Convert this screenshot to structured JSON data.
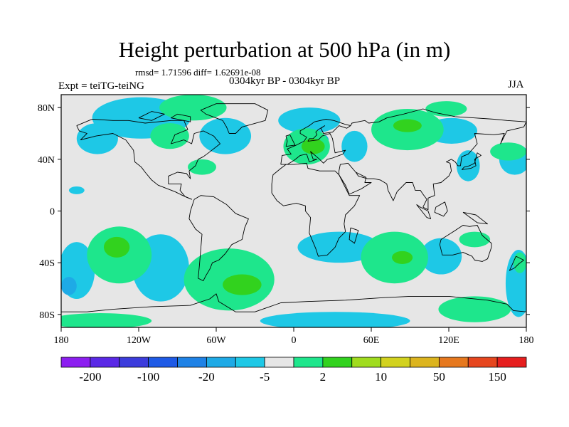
{
  "header": {
    "title": "Height perturbation at 500 hPa (in m)",
    "stats": "rmsd= 1.71596 diff= 1.62691e-08",
    "period": "0304kyr BP - 0304kyr BP",
    "expt": "Expt = teiTG-teiNG",
    "season": "JJA"
  },
  "map": {
    "background_color": "#e6e6e6",
    "lon_range": [
      -180,
      180
    ],
    "lat_range": [
      -90,
      90
    ],
    "lat_ticks": [
      {
        "value": 80,
        "label": "80N"
      },
      {
        "value": 40,
        "label": "40N"
      },
      {
        "value": 0,
        "label": "0"
      },
      {
        "value": -40,
        "label": "40S"
      },
      {
        "value": -80,
        "label": "80S"
      }
    ],
    "lon_ticks": [
      {
        "value": -180,
        "label": "180"
      },
      {
        "value": -120,
        "label": "120W"
      },
      {
        "value": -60,
        "label": "60W"
      },
      {
        "value": 0,
        "label": "0"
      },
      {
        "value": 60,
        "label": "60E"
      },
      {
        "value": 120,
        "label": "120E"
      },
      {
        "value": 180,
        "label": "180"
      }
    ]
  },
  "colorbar": {
    "colors": [
      "#8c1ef0",
      "#5a28e6",
      "#3c3cdc",
      "#1e5ae6",
      "#1e82e6",
      "#1eaae6",
      "#1ec8e6",
      "#e6e6e6",
      "#1ee68c",
      "#32d21e",
      "#a0dc1e",
      "#d2d21e",
      "#dcb41e",
      "#e6781e",
      "#e6461e",
      "#e61e1e"
    ],
    "labels": [
      {
        "after_box": 1,
        "text": "-200"
      },
      {
        "after_box": 3,
        "text": "-100"
      },
      {
        "after_box": 5,
        "text": "-20"
      },
      {
        "after_box": 7,
        "text": "-5"
      },
      {
        "after_box": 9,
        "text": "2"
      },
      {
        "after_box": 11,
        "text": "10"
      },
      {
        "after_box": 13,
        "text": "50"
      },
      {
        "after_box": 15,
        "text": "150"
      }
    ]
  },
  "fields": {
    "cyan_color": "#1ec8e6",
    "blue_color": "#1eaae6",
    "green_color": "#1ee68c",
    "lime_color": "#32d21e",
    "cyan_regions": [
      {
        "lon": -118,
        "lat": 72,
        "w": 38,
        "h": 16
      },
      {
        "lon": -152,
        "lat": 56,
        "w": 16,
        "h": 12
      },
      {
        "lon": -53,
        "lat": 58,
        "w": 20,
        "h": 14
      },
      {
        "lon": -168,
        "lat": 16,
        "w": 6,
        "h": 3
      },
      {
        "lon": 12,
        "lat": 70,
        "w": 24,
        "h": 10
      },
      {
        "lon": 47,
        "lat": 50,
        "w": 10,
        "h": 12
      },
      {
        "lon": 122,
        "lat": 62,
        "w": 20,
        "h": 10
      },
      {
        "lon": 135,
        "lat": 35,
        "w": 9,
        "h": 12
      },
      {
        "lon": 171,
        "lat": 40,
        "w": 12,
        "h": 12
      },
      {
        "lon": -168,
        "lat": -46,
        "w": 14,
        "h": 22
      },
      {
        "lon": -103,
        "lat": -44,
        "w": 22,
        "h": 26
      },
      {
        "lon": 35,
        "lat": -28,
        "w": 32,
        "h": 12
      },
      {
        "lon": 114,
        "lat": -35,
        "w": 16,
        "h": 14
      },
      {
        "lon": 174,
        "lat": -56,
        "w": 10,
        "h": 26
      },
      {
        "lon": 32,
        "lat": -85,
        "w": 58,
        "h": 7
      }
    ],
    "blue_regions": [
      {
        "lon": -174,
        "lat": -58,
        "w": 6,
        "h": 7
      },
      {
        "lon": 20,
        "lat": 55,
        "w": 7,
        "h": 5
      }
    ],
    "green_regions": [
      {
        "lon": -78,
        "lat": 80,
        "w": 26,
        "h": 10
      },
      {
        "lon": -96,
        "lat": 58,
        "w": 15,
        "h": 10
      },
      {
        "lon": -71,
        "lat": 34,
        "w": 11,
        "h": 6
      },
      {
        "lon": 10,
        "lat": 50,
        "w": 18,
        "h": 14
      },
      {
        "lon": 88,
        "lat": 63,
        "w": 28,
        "h": 16
      },
      {
        "lon": 118,
        "lat": 79,
        "w": 16,
        "h": 6
      },
      {
        "lon": 166,
        "lat": 46,
        "w": 14,
        "h": 7
      },
      {
        "lon": -135,
        "lat": -34,
        "w": 25,
        "h": 22
      },
      {
        "lon": -50,
        "lat": -53,
        "w": 35,
        "h": 24
      },
      {
        "lon": 78,
        "lat": -36,
        "w": 26,
        "h": 20
      },
      {
        "lon": 140,
        "lat": -22,
        "w": 12,
        "h": 6
      },
      {
        "lon": 140,
        "lat": -76,
        "w": 28,
        "h": 10
      },
      {
        "lon": -150,
        "lat": -85,
        "w": 40,
        "h": 6
      },
      {
        "lon": 175,
        "lat": -40,
        "w": 5,
        "h": 8
      }
    ],
    "lime_regions": [
      {
        "lon": 15,
        "lat": 50,
        "w": 9,
        "h": 6
      },
      {
        "lon": 88,
        "lat": 66,
        "w": 11,
        "h": 5
      },
      {
        "lon": -137,
        "lat": -28,
        "w": 10,
        "h": 8
      },
      {
        "lon": -40,
        "lat": -57,
        "w": 15,
        "h": 8
      },
      {
        "lon": 84,
        "lat": -36,
        "w": 8,
        "h": 5
      }
    ]
  },
  "coastlines": [
    [
      [
        -168,
        66
      ],
      [
        -156,
        71
      ],
      [
        -140,
        70
      ],
      [
        -128,
        70
      ],
      [
        -115,
        68
      ],
      [
        -95,
        70
      ],
      [
        -85,
        70
      ],
      [
        -82,
        63
      ],
      [
        -92,
        59
      ],
      [
        -95,
        52
      ],
      [
        -85,
        55
      ],
      [
        -79,
        52
      ],
      [
        -77,
        60
      ],
      [
        -70,
        62
      ],
      [
        -62,
        58
      ],
      [
        -57,
        52
      ],
      [
        -66,
        45
      ],
      [
        -70,
        42
      ],
      [
        -74,
        40
      ],
      [
        -76,
        35
      ],
      [
        -81,
        31
      ],
      [
        -80,
        25
      ],
      [
        -83,
        29
      ],
      [
        -90,
        30
      ],
      [
        -97,
        27
      ],
      [
        -97,
        21
      ],
      [
        -87,
        21
      ],
      [
        -88,
        16
      ],
      [
        -84,
        11
      ],
      [
        -79,
        9
      ],
      [
        -86,
        12
      ],
      [
        -92,
        15
      ],
      [
        -105,
        20
      ],
      [
        -110,
        24
      ],
      [
        -115,
        30
      ],
      [
        -118,
        34
      ],
      [
        -123,
        38
      ],
      [
        -124,
        47
      ],
      [
        -130,
        55
      ],
      [
        -140,
        60
      ],
      [
        -153,
        58
      ],
      [
        -165,
        55
      ],
      [
        -160,
        60
      ],
      [
        -166,
        62
      ],
      [
        -168,
        66
      ]
    ],
    [
      [
        -50,
        60
      ],
      [
        -45,
        60
      ],
      [
        -40,
        65
      ],
      [
        -22,
        70
      ],
      [
        -20,
        78
      ],
      [
        -30,
        83
      ],
      [
        -60,
        83
      ],
      [
        -72,
        78
      ],
      [
        -68,
        75
      ],
      [
        -55,
        70
      ],
      [
        -52,
        65
      ],
      [
        -50,
        60
      ]
    ],
    [
      [
        -77,
        9
      ],
      [
        -72,
        12
      ],
      [
        -62,
        11
      ],
      [
        -52,
        5
      ],
      [
        -45,
        -2
      ],
      [
        -35,
        -6
      ],
      [
        -38,
        -13
      ],
      [
        -40,
        -22
      ],
      [
        -48,
        -26
      ],
      [
        -53,
        -33
      ],
      [
        -58,
        -38
      ],
      [
        -63,
        -40
      ],
      [
        -65,
        -45
      ],
      [
        -68,
        -50
      ],
      [
        -70,
        -54
      ],
      [
        -74,
        -52
      ],
      [
        -73,
        -42
      ],
      [
        -72,
        -30
      ],
      [
        -71,
        -18
      ],
      [
        -76,
        -14
      ],
      [
        -81,
        -6
      ],
      [
        -80,
        0
      ],
      [
        -78,
        6
      ],
      [
        -77,
        9
      ]
    ],
    [
      [
        -10,
        36
      ],
      [
        -9,
        43
      ],
      [
        -2,
        44
      ],
      [
        -5,
        48
      ],
      [
        2,
        51
      ],
      [
        8,
        54
      ],
      [
        10,
        57
      ],
      [
        5,
        60
      ],
      [
        5,
        62
      ],
      [
        12,
        66
      ],
      [
        16,
        69
      ],
      [
        25,
        71
      ],
      [
        31,
        70
      ],
      [
        40,
        67
      ],
      [
        44,
        66
      ],
      [
        41,
        64
      ],
      [
        35,
        66
      ],
      [
        30,
        61
      ],
      [
        23,
        60
      ],
      [
        21,
        64
      ],
      [
        24,
        66
      ],
      [
        19,
        63
      ],
      [
        17,
        61
      ],
      [
        18,
        59
      ],
      [
        15,
        56
      ],
      [
        12,
        56
      ],
      [
        11,
        54
      ],
      [
        19,
        55
      ],
      [
        22,
        58
      ],
      [
        28,
        60
      ],
      [
        30,
        56
      ],
      [
        32,
        45
      ],
      [
        40,
        47
      ],
      [
        38,
        44
      ],
      [
        30,
        41
      ],
      [
        26,
        40
      ],
      [
        23,
        37
      ],
      [
        20,
        40
      ],
      [
        13,
        46
      ],
      [
        15,
        40
      ],
      [
        18,
        40
      ],
      [
        12,
        38
      ],
      [
        10,
        44
      ],
      [
        5,
        43
      ],
      [
        0,
        39
      ],
      [
        -5,
        36
      ],
      [
        -10,
        36
      ]
    ],
    [
      [
        -6,
        50
      ],
      [
        -5,
        54
      ],
      [
        -6,
        58
      ],
      [
        -3,
        59
      ],
      [
        0,
        53
      ],
      [
        1,
        51
      ],
      [
        -6,
        50
      ]
    ],
    [
      [
        -17,
        21
      ],
      [
        -16,
        28
      ],
      [
        -10,
        33
      ],
      [
        -6,
        36
      ],
      [
        0,
        36
      ],
      [
        10,
        37
      ],
      [
        11,
        33
      ],
      [
        20,
        31
      ],
      [
        32,
        31
      ],
      [
        35,
        28
      ],
      [
        38,
        22
      ],
      [
        43,
        12
      ],
      [
        51,
        12
      ],
      [
        47,
        4
      ],
      [
        40,
        -3
      ],
      [
        39,
        -10
      ],
      [
        40,
        -16
      ],
      [
        35,
        -21
      ],
      [
        32,
        -28
      ],
      [
        26,
        -34
      ],
      [
        19,
        -35
      ],
      [
        17,
        -29
      ],
      [
        12,
        -17
      ],
      [
        13,
        -5
      ],
      [
        9,
        0
      ],
      [
        9,
        4
      ],
      [
        2,
        6
      ],
      [
        -8,
        4
      ],
      [
        -13,
        8
      ],
      [
        -17,
        14
      ],
      [
        -17,
        21
      ]
    ],
    [
      [
        44,
        -13
      ],
      [
        50,
        -15
      ],
      [
        47,
        -25
      ],
      [
        43,
        -22
      ],
      [
        44,
        -13
      ]
    ],
    [
      [
        35,
        31
      ],
      [
        36,
        36
      ],
      [
        42,
        37
      ],
      [
        48,
        30
      ],
      [
        56,
        26
      ],
      [
        55,
        22
      ],
      [
        60,
        22
      ],
      [
        52,
        17
      ],
      [
        43,
        13
      ],
      [
        40,
        20
      ],
      [
        35,
        28
      ],
      [
        35,
        31
      ]
    ],
    [
      [
        48,
        30
      ],
      [
        50,
        27
      ],
      [
        57,
        25
      ],
      [
        62,
        25
      ],
      [
        67,
        24
      ],
      [
        72,
        21
      ],
      [
        73,
        16
      ],
      [
        77,
        8
      ],
      [
        80,
        15
      ],
      [
        87,
        22
      ],
      [
        92,
        22
      ],
      [
        94,
        16
      ],
      [
        98,
        16
      ],
      [
        100,
        13
      ],
      [
        103,
        9
      ],
      [
        100,
        3
      ],
      [
        104,
        1
      ],
      [
        104,
        10
      ],
      [
        109,
        12
      ],
      [
        108,
        21
      ],
      [
        114,
        22
      ],
      [
        120,
        27
      ],
      [
        122,
        31
      ],
      [
        121,
        37
      ],
      [
        118,
        38
      ],
      [
        122,
        40
      ],
      [
        125,
        38
      ],
      [
        127,
        35
      ],
      [
        129,
        35
      ],
      [
        130,
        42
      ],
      [
        135,
        44
      ],
      [
        142,
        52
      ],
      [
        140,
        60
      ],
      [
        155,
        59
      ],
      [
        163,
        60
      ],
      [
        160,
        52
      ],
      [
        165,
        62
      ],
      [
        178,
        65
      ],
      [
        180,
        69
      ],
      [
        165,
        70
      ],
      [
        155,
        71
      ],
      [
        140,
        72
      ],
      [
        125,
        73
      ],
      [
        110,
        76
      ],
      [
        100,
        79
      ],
      [
        85,
        75
      ],
      [
        72,
        72
      ],
      [
        66,
        69
      ],
      [
        58,
        68
      ],
      [
        55,
        70
      ],
      [
        45,
        68
      ],
      [
        44,
        66
      ]
    ],
    [
      [
        130,
        32
      ],
      [
        132,
        34
      ],
      [
        136,
        35
      ],
      [
        140,
        37
      ],
      [
        141,
        41
      ],
      [
        142,
        45
      ],
      [
        145,
        43
      ],
      [
        140,
        40
      ],
      [
        141,
        35
      ],
      [
        137,
        33
      ],
      [
        130,
        32
      ]
    ],
    [
      [
        95,
        5
      ],
      [
        103,
        -5
      ],
      [
        106,
        -6
      ],
      [
        104,
        0
      ],
      [
        98,
        3
      ],
      [
        95,
        5
      ]
    ],
    [
      [
        109,
        -1
      ],
      [
        110,
        3
      ],
      [
        117,
        7
      ],
      [
        119,
        0
      ],
      [
        116,
        -4
      ],
      [
        109,
        -1
      ]
    ],
    [
      [
        131,
        -1
      ],
      [
        141,
        -3
      ],
      [
        150,
        -10
      ],
      [
        142,
        -9
      ],
      [
        131,
        -1
      ]
    ],
    [
      [
        114,
        -22
      ],
      [
        113,
        -26
      ],
      [
        115,
        -34
      ],
      [
        123,
        -34
      ],
      [
        131,
        -32
      ],
      [
        138,
        -35
      ],
      [
        140,
        -38
      ],
      [
        146,
        -39
      ],
      [
        150,
        -37
      ],
      [
        153,
        -28
      ],
      [
        153,
        -25
      ],
      [
        146,
        -19
      ],
      [
        142,
        -11
      ],
      [
        136,
        -12
      ],
      [
        131,
        -11
      ],
      [
        125,
        -15
      ],
      [
        114,
        -22
      ]
    ],
    [
      [
        172,
        -35
      ],
      [
        178,
        -38
      ],
      [
        174,
        -41
      ],
      [
        171,
        -44
      ],
      [
        167,
        -46
      ],
      [
        172,
        -35
      ]
    ],
    [
      [
        -180,
        -78
      ],
      [
        -160,
        -78
      ],
      [
        -140,
        -76
      ],
      [
        -110,
        -74
      ],
      [
        -80,
        -73
      ],
      [
        -65,
        -68
      ],
      [
        -60,
        -64
      ],
      [
        -58,
        -70
      ],
      [
        -45,
        -78
      ],
      [
        -30,
        -78
      ],
      [
        -10,
        -71
      ],
      [
        10,
        -70
      ],
      [
        40,
        -69
      ],
      [
        70,
        -67
      ],
      [
        90,
        -66
      ],
      [
        120,
        -66
      ],
      [
        150,
        -69
      ],
      [
        165,
        -72
      ],
      [
        170,
        -77
      ],
      [
        180,
        -78
      ]
    ],
    [
      [
        -90,
        75
      ],
      [
        -80,
        73
      ],
      [
        -80,
        69
      ],
      [
        -95,
        72
      ],
      [
        -90,
        75
      ]
    ],
    [
      [
        -120,
        72
      ],
      [
        -110,
        77
      ],
      [
        -100,
        75
      ],
      [
        -110,
        70
      ],
      [
        -120,
        72
      ]
    ]
  ]
}
